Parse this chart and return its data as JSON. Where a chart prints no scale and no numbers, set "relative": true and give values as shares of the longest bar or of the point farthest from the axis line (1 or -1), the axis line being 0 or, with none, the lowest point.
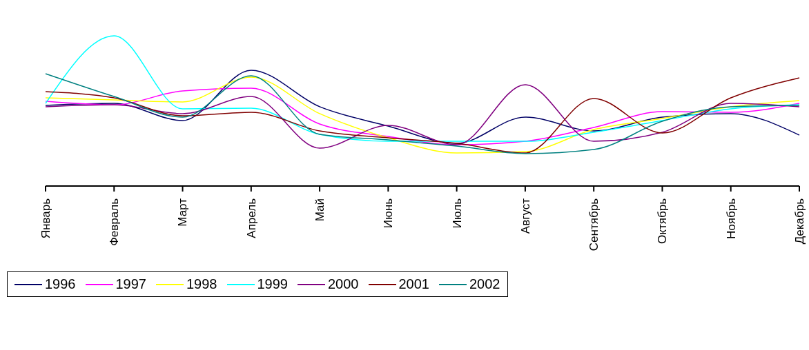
{
  "chart_data": {
    "type": "line",
    "relative": true,
    "legend": "bottom",
    "grid": false,
    "marker": "none",
    "line_style": "solid",
    "categories": [
      "Январь",
      "Февраль",
      "Март",
      "Апрель",
      "Май",
      "Июнь",
      "Июль",
      "Август",
      "Сентябрь",
      "Октябрь",
      "Ноябрь",
      "Декабрь"
    ],
    "series": [
      {
        "name": "1996",
        "color": "#000066",
        "values": [
          0.537,
          0.55,
          0.436,
          0.771,
          0.528,
          0.399,
          0.284,
          0.459,
          0.367,
          0.459,
          0.482,
          0.339
        ]
      },
      {
        "name": "1997",
        "color": "#ff00ff",
        "values": [
          0.564,
          0.541,
          0.633,
          0.651,
          0.413,
          0.33,
          0.275,
          0.298,
          0.39,
          0.495,
          0.491,
          0.55
        ]
      },
      {
        "name": "1998",
        "color": "#ffff00",
        "values": [
          0.587,
          0.573,
          0.56,
          0.725,
          0.482,
          0.321,
          0.22,
          0.229,
          0.376,
          0.45,
          0.528,
          0.569
        ]
      },
      {
        "name": "1999",
        "color": "#00ffff",
        "values": [
          0.55,
          1,
          0.514,
          0.518,
          0.344,
          0.298,
          0.298,
          0.298,
          0.358,
          0.436,
          0.514,
          0.541
        ]
      },
      {
        "name": "2000",
        "color": "#800080",
        "values": [
          0.528,
          0.541,
          0.482,
          0.596,
          0.252,
          0.404,
          0.275,
          0.674,
          0.298,
          0.358,
          0.55,
          0.528
        ]
      },
      {
        "name": "2001",
        "color": "#800000",
        "values": [
          0.628,
          0.587,
          0.468,
          0.491,
          0.367,
          0.321,
          0.284,
          0.22,
          0.583,
          0.353,
          0.587,
          0.72
        ]
      },
      {
        "name": "2002",
        "color": "#008080",
        "values": [
          0.748,
          0.596,
          0.459,
          0.734,
          0.344,
          0.307,
          0.266,
          0.216,
          0.243,
          0.431,
          0.528,
          0.537
        ]
      }
    ]
  }
}
